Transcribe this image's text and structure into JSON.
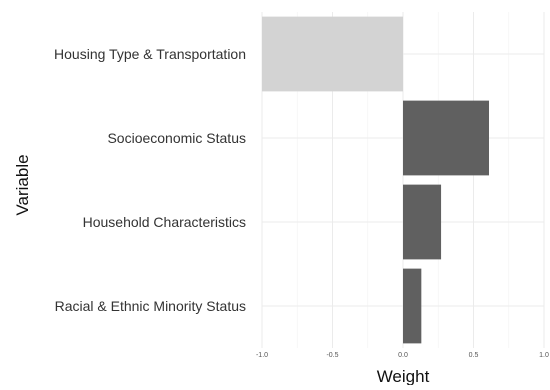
{
  "chart_data": {
    "type": "bar",
    "orientation": "horizontal",
    "categories": [
      "Housing Type & Transportation",
      "Socioeconomic Status",
      "Household Characteristics",
      "Racial & Ethnic Minority Status"
    ],
    "values": [
      -1.0,
      0.61,
      0.27,
      0.13
    ],
    "bar_colors": [
      "#d3d3d3",
      "#606060",
      "#606060",
      "#606060"
    ],
    "xlabel": "Weight",
    "ylabel": "Variable",
    "xlim": [
      -1.0,
      1.0
    ],
    "xticks": [
      -1.0,
      -0.5,
      0.0,
      0.5,
      1.0
    ],
    "xtick_labels": [
      "-1.0",
      "-0.5",
      "0.0",
      "0.5",
      "1.0"
    ],
    "grid": true,
    "legend": "none",
    "grid_color": "#ebebeb"
  }
}
